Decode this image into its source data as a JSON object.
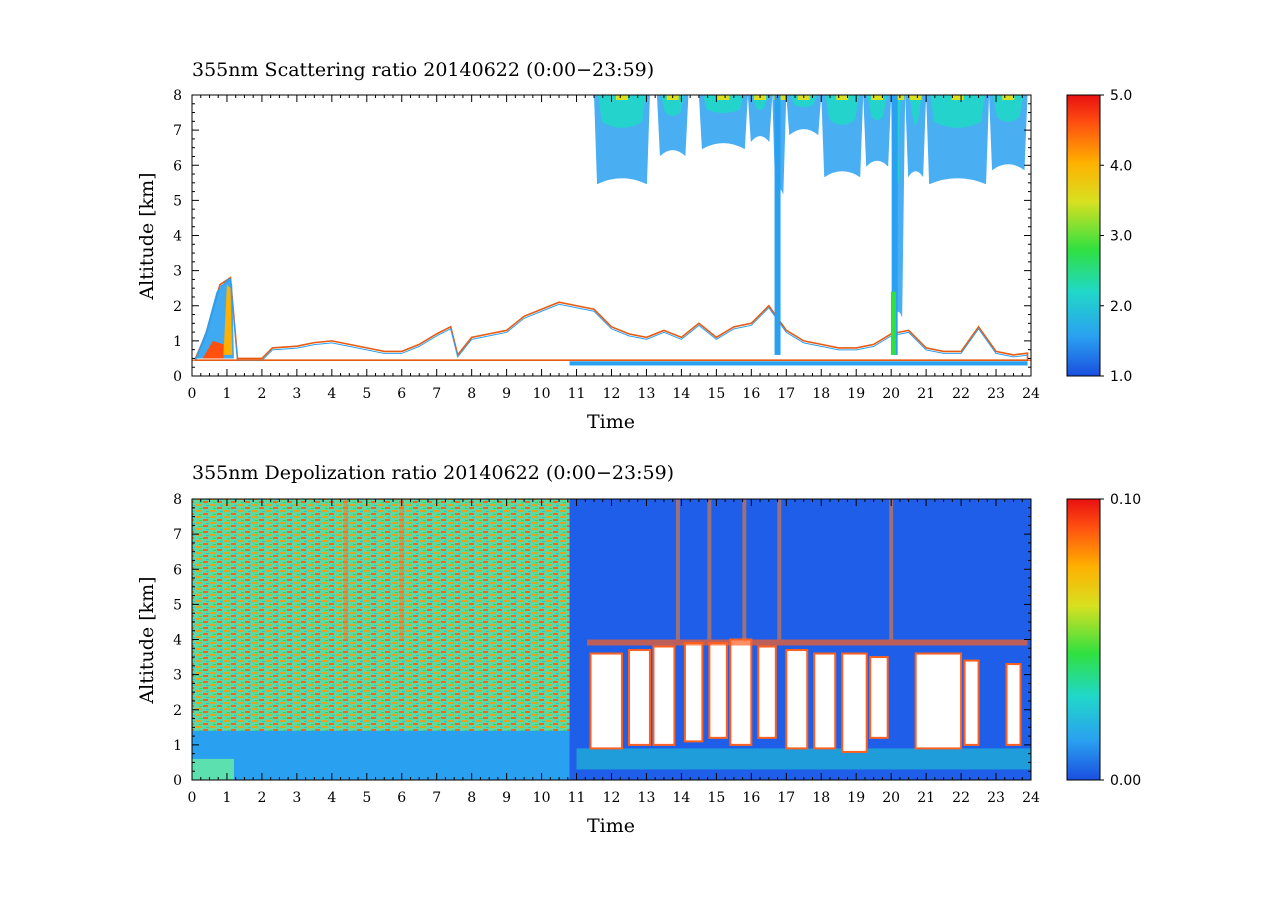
{
  "chart_data": [
    {
      "type": "heatmap",
      "title": "355nm Scattering ratio  20140622 (0:00−23:59)",
      "xlabel": "Time",
      "ylabel": "Altitude [km]",
      "xlim": [
        0,
        24
      ],
      "ylim": [
        0,
        8
      ],
      "x_ticks": [
        "0",
        "1",
        "2",
        "3",
        "4",
        "5",
        "6",
        "7",
        "8",
        "9",
        "10",
        "11",
        "12",
        "13",
        "14",
        "15",
        "16",
        "17",
        "18",
        "19",
        "20",
        "21",
        "22",
        "23",
        "24"
      ],
      "y_ticks": [
        "0",
        "1",
        "2",
        "3",
        "4",
        "5",
        "6",
        "7",
        "8"
      ],
      "colorbar": {
        "range": [
          1.0,
          5.0
        ],
        "tick_labels": [
          "1.0",
          "2.0",
          "3.0",
          "4.0",
          "5.0"
        ],
        "colors": [
          "#1a4fe0",
          "#2aa0f0",
          "#20d8c8",
          "#30e040",
          "#d8e020",
          "#ffb000",
          "#ff5010",
          "#e81010"
        ]
      },
      "features": {
        "low_layer_top_km": 0.45,
        "boundary_layer_top_km": [
          [
            0.1,
            0.5
          ],
          [
            0.4,
            1.2
          ],
          [
            0.8,
            2.6
          ],
          [
            1.1,
            2.8
          ],
          [
            1.3,
            0.5
          ],
          [
            2.0,
            0.5
          ],
          [
            2.3,
            0.8
          ],
          [
            3.0,
            0.85
          ],
          [
            3.5,
            0.95
          ],
          [
            4.0,
            1.0
          ],
          [
            4.5,
            0.9
          ],
          [
            5.0,
            0.8
          ],
          [
            5.5,
            0.7
          ],
          [
            6.0,
            0.7
          ],
          [
            6.5,
            0.9
          ],
          [
            7.0,
            1.2
          ],
          [
            7.4,
            1.4
          ],
          [
            7.6,
            0.6
          ],
          [
            8.0,
            1.1
          ],
          [
            8.5,
            1.2
          ],
          [
            9.0,
            1.3
          ],
          [
            9.5,
            1.7
          ],
          [
            10.0,
            1.9
          ],
          [
            10.5,
            2.1
          ],
          [
            11.0,
            2.0
          ],
          [
            11.5,
            1.9
          ],
          [
            12.0,
            1.4
          ],
          [
            12.5,
            1.2
          ],
          [
            13.0,
            1.1
          ],
          [
            13.5,
            1.3
          ],
          [
            14.0,
            1.1
          ],
          [
            14.5,
            1.5
          ],
          [
            15.0,
            1.1
          ],
          [
            15.5,
            1.4
          ],
          [
            16.0,
            1.5
          ],
          [
            16.5,
            2.0
          ],
          [
            17.0,
            1.3
          ],
          [
            17.5,
            1.0
          ],
          [
            18.0,
            0.9
          ],
          [
            18.5,
            0.8
          ],
          [
            19.0,
            0.8
          ],
          [
            19.5,
            0.9
          ],
          [
            20.0,
            1.2
          ],
          [
            20.5,
            1.3
          ],
          [
            21.0,
            0.8
          ],
          [
            21.5,
            0.7
          ],
          [
            22.0,
            0.7
          ],
          [
            22.5,
            1.4
          ],
          [
            23.0,
            0.7
          ],
          [
            23.5,
            0.6
          ],
          [
            23.9,
            0.65
          ]
        ],
        "cirrus_cloud_spans_h": [
          [
            11.5,
            13.1,
            5.8
          ],
          [
            13.3,
            14.2,
            6.6
          ],
          [
            14.5,
            15.9,
            6.8
          ],
          [
            15.9,
            16.6,
            7.0
          ],
          [
            16.6,
            17.0,
            5.5
          ],
          [
            17.0,
            18.0,
            7.2
          ],
          [
            18.0,
            19.2,
            6.0
          ],
          [
            19.2,
            20.0,
            6.3
          ],
          [
            20.0,
            20.4,
            2.0
          ],
          [
            20.4,
            21.0,
            6.0
          ],
          [
            21.0,
            22.8,
            5.8
          ],
          [
            22.8,
            23.9,
            6.2
          ]
        ]
      }
    },
    {
      "type": "heatmap",
      "title": "355nm Depolization ratio  20140622 (0:00−23:59)",
      "xlabel": "Time",
      "ylabel": "Altitude [km]",
      "xlim": [
        0,
        24
      ],
      "ylim": [
        0,
        8
      ],
      "x_ticks": [
        "0",
        "1",
        "2",
        "3",
        "4",
        "5",
        "6",
        "7",
        "8",
        "9",
        "10",
        "11",
        "12",
        "13",
        "14",
        "15",
        "16",
        "17",
        "18",
        "19",
        "20",
        "21",
        "22",
        "23",
        "24"
      ],
      "y_ticks": [
        "0",
        "1",
        "2",
        "3",
        "4",
        "5",
        "6",
        "7",
        "8"
      ],
      "colorbar": {
        "range": [
          0.0,
          0.1
        ],
        "tick_labels": [
          "0.00",
          "0.10"
        ],
        "colors": [
          "#1a4fe0",
          "#2aa0f0",
          "#20d8c8",
          "#30e040",
          "#d8e020",
          "#ffb000",
          "#ff5010",
          "#e81010"
        ]
      },
      "features": {
        "noisy_region_end_hr": 10.8,
        "white_gap_blocks": [
          [
            11.4,
            12.3,
            0.9,
            3.6
          ],
          [
            12.5,
            13.1,
            1.0,
            3.7
          ],
          [
            13.2,
            13.8,
            1.0,
            3.8
          ],
          [
            14.1,
            14.6,
            1.1,
            3.9
          ],
          [
            14.8,
            15.3,
            1.2,
            3.9
          ],
          [
            15.4,
            16.0,
            1.0,
            4.0
          ],
          [
            16.2,
            16.7,
            1.2,
            3.8
          ],
          [
            17.0,
            17.6,
            0.9,
            3.7
          ],
          [
            17.8,
            18.4,
            0.9,
            3.6
          ],
          [
            18.6,
            19.3,
            0.8,
            3.6
          ],
          [
            19.4,
            19.9,
            1.2,
            3.5
          ],
          [
            20.7,
            22.0,
            0.9,
            3.6
          ],
          [
            22.1,
            22.5,
            1.0,
            3.4
          ],
          [
            23.3,
            23.7,
            1.0,
            3.3
          ]
        ]
      }
    }
  ]
}
